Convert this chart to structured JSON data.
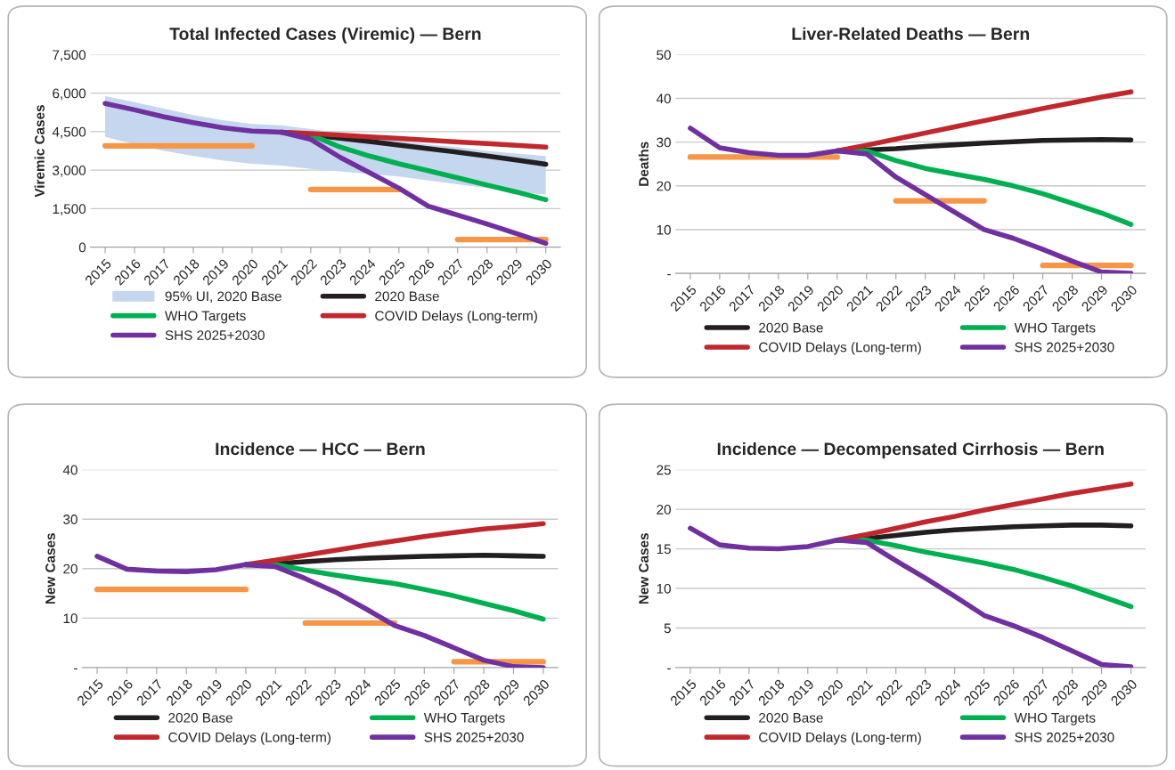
{
  "chart_data": [
    {
      "type": "line",
      "title": "Total Infected Cases (Viremic) — Bern",
      "ylabel": "Viremic Cases",
      "legend": "bottom",
      "grid": "y",
      "marker": "none",
      "line_style": "solid",
      "categories": [
        "2015",
        "2016",
        "2017",
        "2018",
        "2019",
        "2020",
        "2021",
        "2022",
        "2023",
        "2024",
        "2025",
        "2026",
        "2027",
        "2028",
        "2029",
        "2030"
      ],
      "ylim": [
        0,
        7500
      ],
      "yticks": [
        0,
        {
          "value": 1500,
          "label": "1,500"
        },
        {
          "value": 3000,
          "label": "3,000"
        },
        {
          "value": 4500,
          "label": "4,500"
        },
        {
          "value": 6000,
          "label": "6,000"
        },
        {
          "value": 7500,
          "label": "7,500"
        }
      ],
      "series": [
        {
          "name": "95% UI, 2020 Base",
          "type": "area",
          "color": "#c5d7ef",
          "values": [
            null,
            null,
            null,
            null,
            null,
            null,
            null,
            null,
            null,
            null,
            null,
            null,
            null,
            null,
            null,
            null
          ],
          "lower": [
            4300,
            4000,
            3750,
            3550,
            3380,
            3250,
            3180,
            3050,
            2950,
            2850,
            2750,
            2600,
            2450,
            2300,
            2150,
            2050
          ],
          "upper": [
            5880,
            5650,
            5400,
            5150,
            4950,
            4800,
            4750,
            4600,
            4450,
            4300,
            4150,
            4000,
            3900,
            3750,
            3650,
            3550
          ]
        },
        {
          "color": "#f79646",
          "values": [
            3950,
            3950,
            3950,
            3950,
            3950,
            3950,
            null,
            2250,
            2250,
            2250,
            2250,
            null,
            300,
            300,
            300,
            300
          ]
        },
        {
          "name": "2020 Base",
          "color": "#231f20",
          "values": [
            null,
            null,
            null,
            null,
            null,
            null,
            4480,
            4380,
            4250,
            4120,
            3980,
            3840,
            3700,
            3550,
            3400,
            3230
          ]
        },
        {
          "name": "WHO Targets",
          "color": "#00b050",
          "values": [
            null,
            null,
            null,
            null,
            null,
            null,
            null,
            4380,
            3900,
            3550,
            3250,
            2980,
            2700,
            2420,
            2150,
            1850
          ]
        },
        {
          "name": "COVID Delays (Long-term)",
          "color": "#c0282d",
          "values": [
            null,
            null,
            null,
            null,
            null,
            null,
            4480,
            4430,
            4370,
            4300,
            4240,
            4170,
            4100,
            4040,
            3970,
            3900
          ]
        },
        {
          "name": "SHS 2025+2030",
          "color": "#7030a0",
          "values": [
            5600,
            5350,
            5080,
            4850,
            4650,
            4520,
            4480,
            4200,
            3500,
            2900,
            2300,
            1600,
            1250,
            900,
            530,
            150
          ]
        }
      ]
    },
    {
      "type": "line",
      "title": "Liver-Related Deaths — Bern",
      "ylabel": "Deaths",
      "legend": "bottom",
      "grid": "y",
      "marker": "none",
      "line_style": "solid",
      "categories": [
        "2015",
        "2016",
        "2017",
        "2018",
        "2019",
        "2020",
        "2021",
        "2022",
        "2023",
        "2024",
        "2025",
        "2026",
        "2027",
        "2028",
        "2029",
        "2030"
      ],
      "ylim": [
        0,
        50
      ],
      "yticks": [
        {
          "value": 0,
          "label": "-"
        },
        10,
        20,
        30,
        40,
        50
      ],
      "series": [
        {
          "color": "#f79646",
          "values": [
            26.6,
            26.6,
            26.6,
            26.6,
            26.6,
            26.6,
            null,
            16.6,
            16.6,
            16.6,
            16.6,
            null,
            1.8,
            1.8,
            1.8,
            1.8
          ]
        },
        {
          "name": "2020 Base",
          "color": "#231f20",
          "values": [
            null,
            null,
            null,
            null,
            null,
            28,
            28.2,
            28.5,
            29.0,
            29.4,
            29.8,
            30.1,
            30.4,
            30.5,
            30.6,
            30.5
          ]
        },
        {
          "name": "WHO Targets",
          "color": "#00b050",
          "values": [
            null,
            null,
            null,
            null,
            null,
            28,
            28,
            25.8,
            24.0,
            22.7,
            21.5,
            20.0,
            18.2,
            16.0,
            13.8,
            11.2
          ]
        },
        {
          "name": "COVID Delays (Long-term)",
          "color": "#c0282d",
          "values": [
            null,
            null,
            null,
            null,
            null,
            28,
            29.3,
            30.7,
            32.1,
            33.5,
            34.9,
            36.3,
            37.7,
            39.0,
            40.3,
            41.5
          ]
        },
        {
          "name": "SHS 2025+2030",
          "color": "#7030a0",
          "values": [
            33.2,
            28.7,
            27.6,
            27.0,
            27.0,
            28.0,
            27.3,
            22.0,
            18.0,
            14.0,
            10.0,
            8.0,
            5.5,
            2.8,
            0.3,
            0
          ]
        }
      ]
    },
    {
      "type": "line",
      "title": "Incidence — HCC — Bern",
      "ylabel": "New Cases",
      "legend": "bottom",
      "grid": "y",
      "marker": "none",
      "line_style": "solid",
      "categories": [
        "2015",
        "2016",
        "2017",
        "2018",
        "2019",
        "2020",
        "2021",
        "2022",
        "2023",
        "2024",
        "2025",
        "2026",
        "2027",
        "2028",
        "2029",
        "2030"
      ],
      "ylim": [
        0,
        40
      ],
      "yticks": [
        {
          "value": 0,
          "label": "-"
        },
        10,
        20,
        30,
        40
      ],
      "series": [
        {
          "color": "#f79646",
          "values": [
            15.8,
            15.8,
            15.8,
            15.8,
            15.8,
            15.8,
            null,
            9.0,
            9.0,
            9.0,
            9.0,
            null,
            1.2,
            1.2,
            1.2,
            1.2
          ]
        },
        {
          "name": "2020 Base",
          "color": "#231f20",
          "values": [
            null,
            null,
            null,
            null,
            null,
            20.8,
            21.0,
            21.4,
            21.8,
            22.1,
            22.3,
            22.5,
            22.6,
            22.7,
            22.6,
            22.5
          ]
        },
        {
          "name": "WHO Targets",
          "color": "#00b050",
          "values": [
            null,
            null,
            null,
            null,
            null,
            20.8,
            20.8,
            19.7,
            18.7,
            17.8,
            17.0,
            15.8,
            14.5,
            13.0,
            11.5,
            9.8
          ]
        },
        {
          "name": "COVID Delays (Long-term)",
          "color": "#c0282d",
          "values": [
            null,
            null,
            null,
            null,
            null,
            20.8,
            21.7,
            22.7,
            23.7,
            24.7,
            25.6,
            26.5,
            27.3,
            28.0,
            28.5,
            29.1
          ]
        },
        {
          "name": "SHS 2025+2030",
          "color": "#7030a0",
          "values": [
            22.5,
            19.9,
            19.5,
            19.4,
            19.8,
            20.8,
            20.4,
            18.0,
            15.3,
            12.0,
            8.5,
            6.5,
            4.0,
            1.5,
            0.2,
            0
          ]
        }
      ]
    },
    {
      "type": "line",
      "title": "Incidence — Decompensated Cirrhosis — Bern",
      "ylabel": "New Cases",
      "legend": "bottom",
      "grid": "y",
      "marker": "none",
      "line_style": "solid",
      "categories": [
        "2015",
        "2016",
        "2017",
        "2018",
        "2019",
        "2020",
        "2021",
        "2022",
        "2023",
        "2024",
        "2025",
        "2026",
        "2027",
        "2028",
        "2029",
        "2030"
      ],
      "ylim": [
        0,
        25
      ],
      "yticks": [
        {
          "value": 0,
          "label": "-"
        },
        5,
        10,
        15,
        20,
        25
      ],
      "series": [
        {
          "name": "2020 Base",
          "color": "#231f20",
          "values": [
            null,
            null,
            null,
            null,
            null,
            16.1,
            16.3,
            16.7,
            17.1,
            17.4,
            17.6,
            17.8,
            17.9,
            18.0,
            18.0,
            17.9
          ]
        },
        {
          "name": "WHO Targets",
          "color": "#00b050",
          "values": [
            null,
            null,
            null,
            null,
            null,
            16.1,
            16.1,
            15.4,
            14.6,
            13.9,
            13.2,
            12.4,
            11.4,
            10.3,
            9.0,
            7.7
          ]
        },
        {
          "name": "COVID Delays (Long-term)",
          "color": "#c0282d",
          "values": [
            null,
            null,
            null,
            null,
            null,
            16.1,
            16.8,
            17.6,
            18.4,
            19.1,
            19.9,
            20.6,
            21.3,
            22.0,
            22.6,
            23.2
          ]
        },
        {
          "name": "SHS 2025+2030",
          "color": "#7030a0",
          "values": [
            17.6,
            15.5,
            15.1,
            15.0,
            15.3,
            16.1,
            15.8,
            13.5,
            11.3,
            9.0,
            6.6,
            5.3,
            3.8,
            2.1,
            0.4,
            0.1
          ]
        }
      ]
    }
  ]
}
